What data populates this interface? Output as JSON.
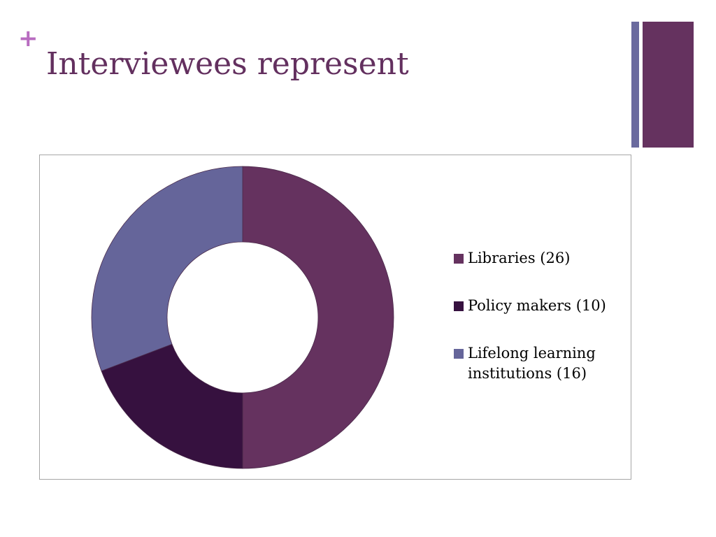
{
  "slide": {
    "plus_symbol": "+",
    "title": "Interviewees represent",
    "colors": {
      "title": "#63305f",
      "plus": "#b86cc0",
      "deco_thin": "#6a6a9e",
      "deco_wide": "#65325f"
    }
  },
  "chart_data": {
    "type": "pie",
    "variant": "donut",
    "title": "",
    "legend_position": "right",
    "categories": [
      "Libraries (26)",
      "Policy makers (10)",
      "Lifelong learning institutions (16)"
    ],
    "values": [
      26,
      10,
      16
    ],
    "colors": [
      "#65325f",
      "#36113f",
      "#65659a"
    ]
  }
}
